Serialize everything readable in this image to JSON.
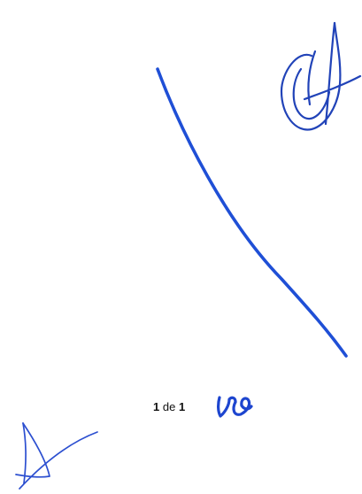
{
  "page_counter": {
    "current": "1",
    "separator": "de",
    "total": "1"
  },
  "ink": {
    "color": "#1f4fd6",
    "strokes": [
      "diagonal-cancel-line",
      "signature-top-right",
      "initials-bottom",
      "signature-bottom-left"
    ]
  }
}
